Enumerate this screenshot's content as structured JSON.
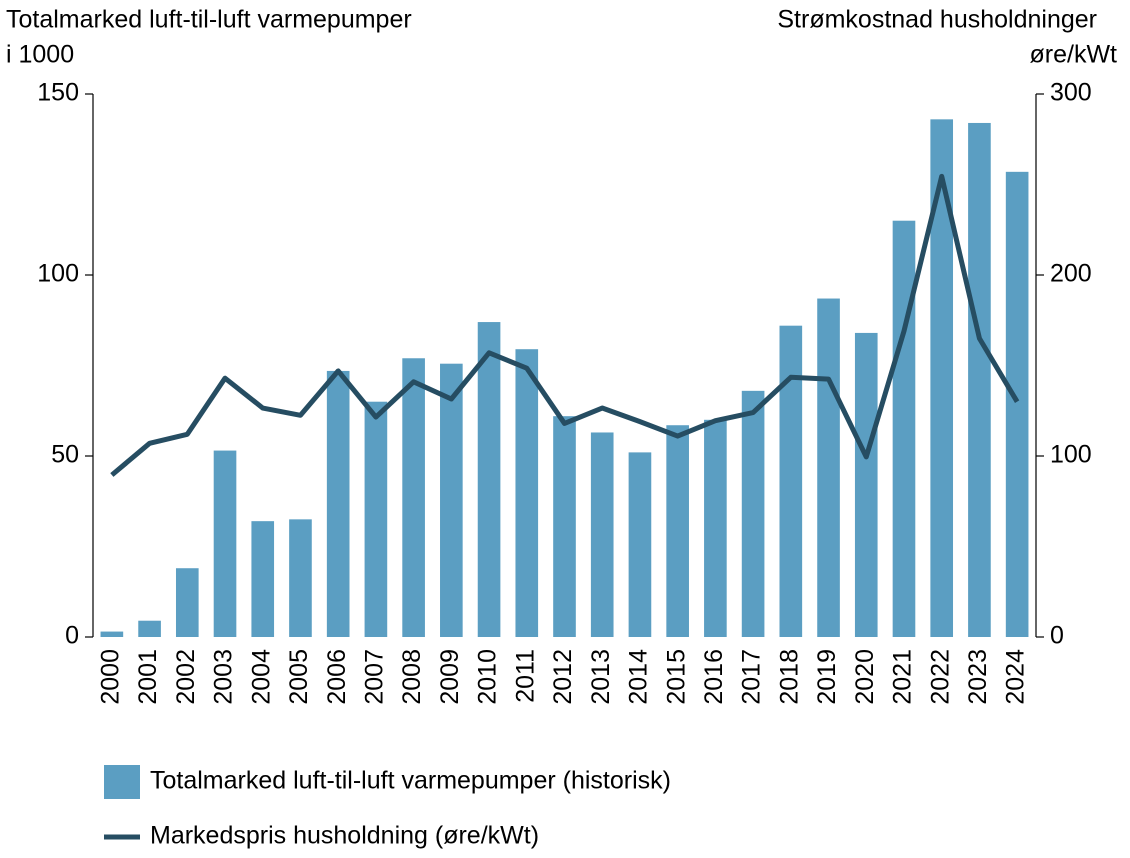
{
  "chart_data": {
    "type": "bar_line",
    "y_label": [
      "Totalmarked luft-til-luft varmepumper",
      "i 1000"
    ],
    "y2_label": [
      "Strømkostnad husholdninger",
      "øre/kWt"
    ],
    "categories": [
      "2000",
      "2001",
      "2002",
      "2003",
      "2004",
      "2005",
      "2006",
      "2007",
      "2008",
      "2009",
      "2010",
      "2011",
      "2012",
      "2013",
      "2014",
      "2015",
      "2016",
      "2017",
      "2018",
      "2019",
      "2020",
      "2021",
      "2022",
      "2023",
      "2024"
    ],
    "series": [
      {
        "name": "Totalmarked luft-til-luft varmepumper (historisk)",
        "type": "bar",
        "color": "#5b9ec2",
        "values": [
          1.5,
          4.5,
          19,
          51.5,
          32,
          32.5,
          73.5,
          65,
          77,
          75.5,
          87,
          79.5,
          61,
          56.5,
          51,
          58.5,
          60,
          68,
          86,
          93.5,
          84,
          115,
          143,
          142,
          128.5
        ]
      },
      {
        "name": "Markedspris husholdning (øre/kWt)",
        "type": "line",
        "axis": "y2",
        "color": "#264d62",
        "values": [
          89.5,
          107,
          112,
          143,
          126.5,
          122.5,
          147,
          121.5,
          141,
          131.5,
          157,
          148.5,
          118,
          126.5,
          119,
          111,
          119.5,
          124,
          143.5,
          142.5,
          99.5,
          169,
          254.5,
          165,
          130
        ]
      }
    ],
    "ylim": [
      0,
      150
    ],
    "yticks": [
      0,
      50,
      100,
      150
    ],
    "y2lim": [
      0,
      300
    ],
    "y2ticks": [
      0,
      100,
      200,
      300
    ]
  }
}
